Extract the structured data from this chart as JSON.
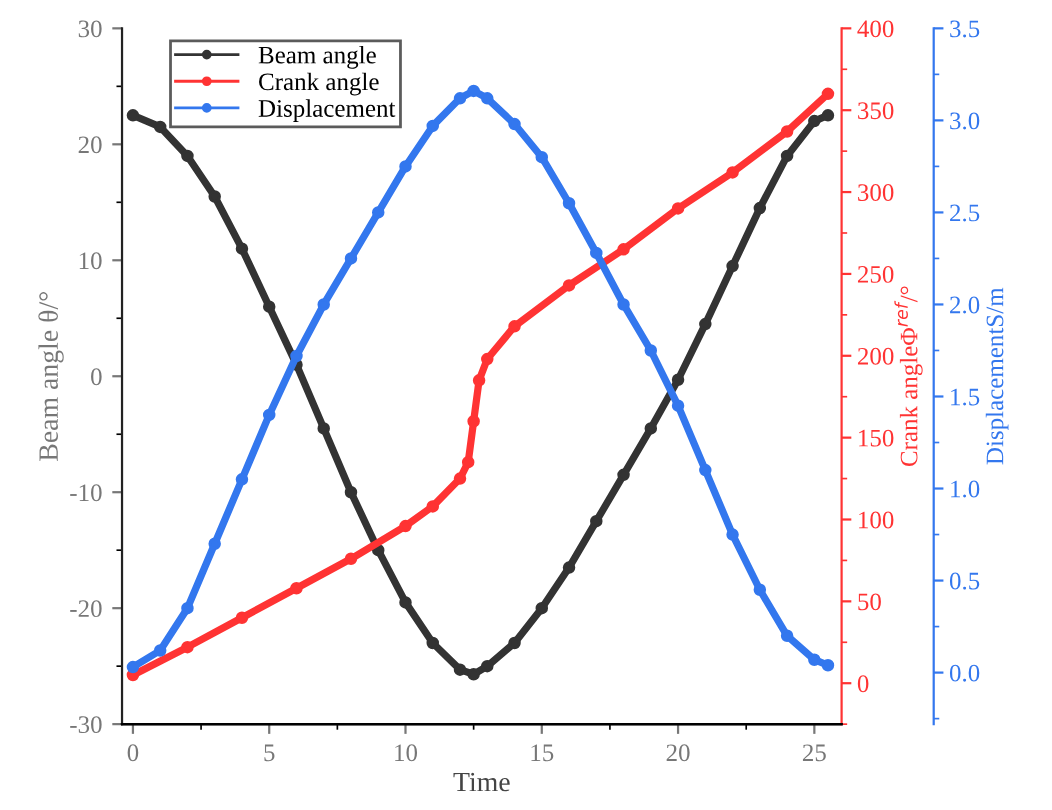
{
  "chart_data": {
    "type": "line",
    "xlabel": "Time",
    "ylabel": "Beam angle θ/°",
    "y2label": "Crank angleΦ$^{ref}$/°",
    "y3label": "DisplacementS/m",
    "xlim": [
      -0.4,
      26
    ],
    "xticks": [
      0,
      5,
      10,
      15,
      20,
      25
    ],
    "ylim": [
      -30,
      30
    ],
    "yticks": [
      -30,
      -20,
      -10,
      0,
      10,
      20,
      30
    ],
    "y2lim": [
      -25,
      400
    ],
    "y2ticks": [
      0,
      50,
      100,
      150,
      200,
      250,
      300,
      350,
      400
    ],
    "y3lim": [
      -0.28,
      3.5
    ],
    "y3ticks": [
      {
        "value": 0,
        "label": "0.0"
      },
      0.5,
      {
        "value": 1,
        "label": "1.0"
      },
      1.5,
      {
        "value": 2,
        "label": "2.0"
      },
      2.5,
      {
        "value": 3,
        "label": "3.0"
      },
      3.5
    ],
    "legend": "top left",
    "marker": "circle",
    "line_style": "solid",
    "grid": false,
    "series": [
      {
        "name": "Beam angle",
        "color": "#333333",
        "x": [
          0,
          1,
          2,
          3,
          4,
          5,
          6,
          7,
          8,
          9,
          10,
          11,
          12,
          12.5,
          13,
          14,
          15,
          16,
          17,
          18,
          19,
          20,
          21,
          22,
          23,
          24,
          25,
          25.5
        ],
        "values": [
          22.5,
          21.5,
          19,
          15.5,
          11,
          6,
          1,
          -4.5,
          -10,
          -15,
          -19.5,
          -23,
          -25.3,
          -25.7,
          -25,
          -23,
          -20,
          -16.5,
          -12.5,
          -8.5,
          -4.5,
          -0.3,
          4.5,
          9.5,
          14.5,
          19,
          22,
          22.5
        ]
      },
      {
        "name": "Crank angle",
        "color": "#ff3333",
        "axis": "y2",
        "x": [
          0,
          2,
          4,
          6,
          8,
          10,
          11,
          12,
          12.3,
          12.5,
          12.7,
          13,
          14,
          16,
          18,
          20,
          22,
          24,
          25.5
        ],
        "values": [
          5,
          22,
          40,
          58,
          76,
          96,
          108,
          125,
          135,
          160,
          185,
          198,
          218,
          243,
          265,
          290,
          312,
          337,
          360
        ]
      },
      {
        "name": "Displacement",
        "color": "#3377ee",
        "axis": "y3",
        "x": [
          0,
          1,
          2,
          3,
          4,
          5,
          6,
          7,
          8,
          9,
          10,
          11,
          12,
          12.5,
          13,
          14,
          15,
          16,
          17,
          18,
          19,
          20,
          21,
          22,
          23,
          24,
          25,
          25.5
        ],
        "values": [
          0.03,
          0.12,
          0.35,
          0.7,
          1.05,
          1.4,
          1.72,
          2.0,
          2.25,
          2.5,
          2.75,
          2.97,
          3.12,
          3.16,
          3.12,
          2.98,
          2.8,
          2.55,
          2.28,
          2.0,
          1.75,
          1.45,
          1.1,
          0.75,
          0.45,
          0.2,
          0.07,
          0.04
        ]
      }
    ]
  }
}
